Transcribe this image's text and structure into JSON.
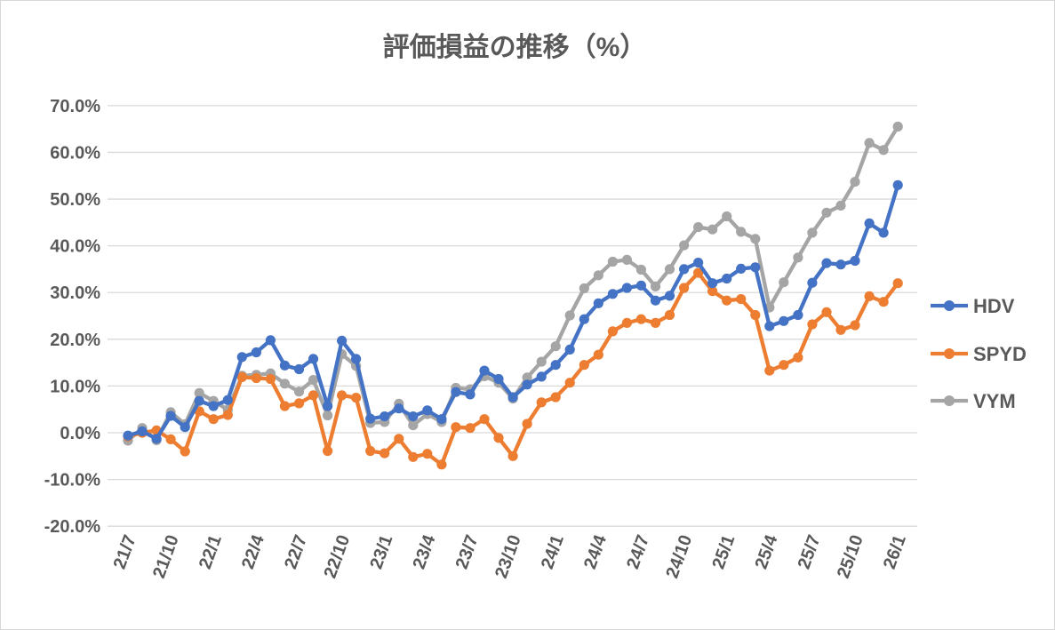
{
  "title": "評価損益の推移（%）",
  "chart_data": {
    "type": "line",
    "title": "評価損益の推移（%）",
    "categories": [
      "21/7",
      "21/8",
      "21/9",
      "21/10",
      "21/11",
      "21/12",
      "22/1",
      "22/2",
      "22/3",
      "22/4",
      "22/5",
      "22/6",
      "22/7",
      "22/8",
      "22/9",
      "22/10",
      "22/11",
      "22/12",
      "23/1",
      "23/2",
      "23/3",
      "23/4",
      "23/5",
      "23/6",
      "23/7",
      "23/8",
      "23/9",
      "23/10",
      "23/11",
      "23/12",
      "24/1",
      "24/2",
      "24/3",
      "24/4",
      "24/5",
      "24/6",
      "24/7",
      "24/8",
      "24/9",
      "24/10",
      "24/11",
      "24/12",
      "25/1",
      "25/2",
      "25/3",
      "25/4",
      "25/5",
      "25/6",
      "25/7",
      "25/8",
      "25/9",
      "25/10",
      "25/11",
      "25/12",
      "26/1"
    ],
    "x_tick_labels": [
      "21/7",
      "21/10",
      "22/1",
      "22/4",
      "22/7",
      "22/10",
      "23/1",
      "23/4",
      "23/7",
      "23/10",
      "24/1",
      "24/4",
      "24/7",
      "24/10",
      "25/1",
      "25/4",
      "25/7",
      "25/10",
      "26/1"
    ],
    "x_tick_every": 3,
    "y_tick_labels": [
      "70.0%",
      "60.0%",
      "50.0%",
      "40.0%",
      "30.0%",
      "20.0%",
      "10.0%",
      "0.0%",
      "-10.0%",
      "-20.0%"
    ],
    "ylim": [
      -20,
      70
    ],
    "ytick_step": 10,
    "grid": "horizontal",
    "legend_position": "right",
    "series": [
      {
        "name": "HDV",
        "color": "#4472C4",
        "values": [
          -0.6,
          0.3,
          -1.3,
          3.6,
          1.2,
          6.8,
          5.7,
          7.0,
          16.2,
          17.2,
          19.8,
          14.4,
          13.6,
          15.8,
          5.7,
          19.7,
          15.8,
          3.0,
          3.5,
          5.2,
          3.5,
          4.8,
          2.9,
          8.7,
          8.2,
          13.3,
          11.5,
          7.6,
          10.3,
          12.0,
          14.5,
          17.8,
          24.3,
          27.7,
          29.7,
          31.0,
          31.5,
          28.3,
          29.3,
          35.0,
          36.4,
          32.0,
          33.0,
          35.1,
          35.4,
          22.8,
          23.9,
          25.2,
          32.1,
          36.3,
          36.0,
          36.8,
          44.8,
          42.8,
          53.0
        ]
      },
      {
        "name": "SPYD",
        "color": "#ED7D31",
        "values": [
          -0.8,
          0.0,
          0.5,
          -1.4,
          -4.0,
          4.6,
          2.9,
          3.8,
          11.9,
          11.7,
          11.5,
          5.7,
          6.3,
          8.0,
          -3.9,
          8.0,
          7.5,
          -3.9,
          -4.4,
          -1.3,
          -5.2,
          -4.5,
          -6.8,
          1.2,
          1.0,
          2.9,
          -1.1,
          -5.0,
          1.9,
          6.5,
          7.6,
          10.7,
          14.5,
          16.7,
          21.7,
          23.5,
          24.3,
          23.5,
          25.2,
          31.0,
          34.2,
          30.3,
          28.3,
          28.6,
          25.2,
          13.3,
          14.5,
          16.1,
          23.2,
          25.8,
          22.0,
          23.0,
          29.2,
          28.0,
          32.0
        ]
      },
      {
        "name": "VYM",
        "color": "#A5A5A5",
        "values": [
          -1.7,
          1.0,
          -1.6,
          4.4,
          1.8,
          8.5,
          6.8,
          4.9,
          12.2,
          12.4,
          12.7,
          10.5,
          8.8,
          11.3,
          3.7,
          16.8,
          14.3,
          2.1,
          2.3,
          6.2,
          1.6,
          4.0,
          2.3,
          9.6,
          9.3,
          12.1,
          10.7,
          7.3,
          11.8,
          15.2,
          18.5,
          25.1,
          30.9,
          33.7,
          36.6,
          37.0,
          34.9,
          31.3,
          35.0,
          40.1,
          44.0,
          43.5,
          46.3,
          43.0,
          41.5,
          26.8,
          32.2,
          37.5,
          42.8,
          47.1,
          48.6,
          53.7,
          62.0,
          60.5,
          65.5
        ]
      }
    ],
    "style": {
      "text_color": "#595959",
      "grid_color": "#D9D9D9",
      "background": "#FFFFFF",
      "line_width": 4.3,
      "marker_radius": 5.6
    }
  }
}
